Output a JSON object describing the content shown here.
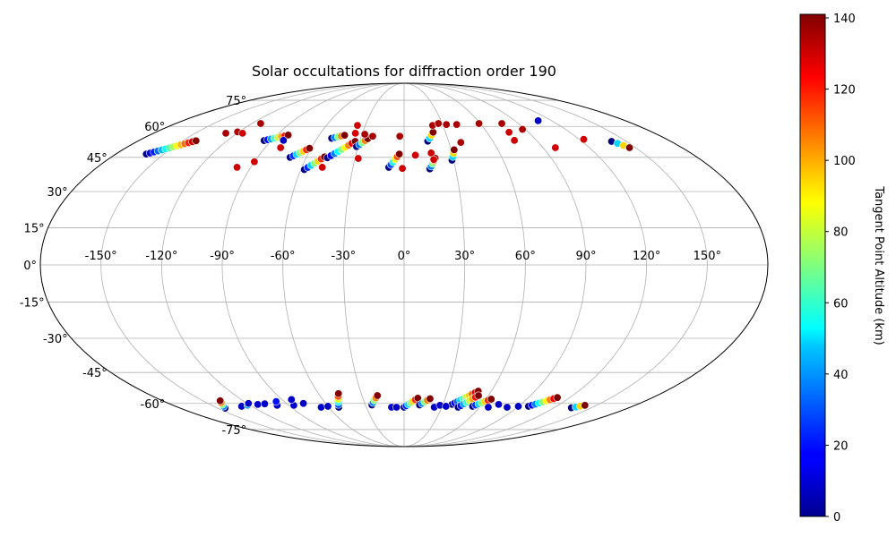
{
  "chart_data": {
    "type": "scatter",
    "projection": "mollweide",
    "title": "Solar occultations for diffraction order 190",
    "lon_ticks": [
      {
        "value": -150,
        "label": "-150°"
      },
      {
        "value": -120,
        "label": "-120°"
      },
      {
        "value": -90,
        "label": "-90°"
      },
      {
        "value": -60,
        "label": "-60°"
      },
      {
        "value": -30,
        "label": "-30°"
      },
      {
        "value": 0,
        "label": "0°"
      },
      {
        "value": 30,
        "label": "30°"
      },
      {
        "value": 60,
        "label": "60°"
      },
      {
        "value": 90,
        "label": "90°"
      },
      {
        "value": 120,
        "label": "120°"
      },
      {
        "value": 150,
        "label": "150°"
      }
    ],
    "lat_ticks": [
      {
        "value": 75,
        "label": "75°"
      },
      {
        "value": 60,
        "label": "60°"
      },
      {
        "value": 45,
        "label": "45°"
      },
      {
        "value": 30,
        "label": "30°"
      },
      {
        "value": 15,
        "label": "15°"
      },
      {
        "value": 0,
        "label": "0°"
      },
      {
        "value": -15,
        "label": "-15°"
      },
      {
        "value": -30,
        "label": "-30°"
      },
      {
        "value": -45,
        "label": "-45°"
      },
      {
        "value": -60,
        "label": "-60°"
      },
      {
        "value": -75,
        "label": "-75°"
      }
    ],
    "colorbar": {
      "label": "Tangent Point Altitude (km)",
      "colormap": "jet",
      "range": [
        0,
        141
      ],
      "ticks": [
        {
          "value": 0,
          "label": "0"
        },
        {
          "value": 20,
          "label": "20"
        },
        {
          "value": 40,
          "label": "40"
        },
        {
          "value": 60,
          "label": "60"
        },
        {
          "value": 80,
          "label": "80"
        },
        {
          "value": 100,
          "label": "100"
        },
        {
          "value": 120,
          "label": "120"
        },
        {
          "value": 140,
          "label": "140"
        }
      ]
    },
    "tracks": [
      {
        "lon0": -161,
        "lat0": 46.5,
        "lon1": -141,
        "lat1": 52.8,
        "n": 14
      },
      {
        "lon0": -95,
        "lat0": 52.9,
        "lon1": -82,
        "lat1": 55.6,
        "n": 8
      },
      {
        "lon0": -70,
        "lat0": 45.0,
        "lon1": -61,
        "lat1": 49.2,
        "n": 7
      },
      {
        "lon0": -58,
        "lat0": 39.5,
        "lon1": -49,
        "lat1": 45.2,
        "n": 7
      },
      {
        "lon0": -47,
        "lat0": 44.8,
        "lon1": -33,
        "lat1": 52.5,
        "n": 9
      },
      {
        "lon0": -50,
        "lat0": 54.0,
        "lon1": -42,
        "lat1": 55.5,
        "n": 5
      },
      {
        "lon0": -31,
        "lat0": 50.0,
        "lon1": -25,
        "lat1": 53.8,
        "n": 5
      },
      {
        "lon0": -9,
        "lat0": 40.5,
        "lon1": -3,
        "lat1": 46.5,
        "n": 6
      },
      {
        "lon0": 15,
        "lat0": 39.8,
        "lon1": 19,
        "lat1": 44.6,
        "n": 5
      },
      {
        "lon0": 29,
        "lat0": 43.7,
        "lon1": 32,
        "lat1": 48.5,
        "n": 4
      },
      {
        "lon0": 16,
        "lat0": 52.6,
        "lon1": 21,
        "lat1": 57.0,
        "n": 4
      },
      {
        "lon0": -144,
        "lat0": -62.5,
        "lon1": -137,
        "lat1": -58.6,
        "n": 5
      },
      {
        "lon0": -52,
        "lat0": -62.0,
        "lon1": -46,
        "lat1": -55.0,
        "n": 6
      },
      {
        "lon0": -25,
        "lat0": -60.8,
        "lon1": -19,
        "lat1": -56.0,
        "n": 5
      },
      {
        "lon0": 0,
        "lat0": -62.0,
        "lon1": 10,
        "lat1": -57.3,
        "n": 7
      },
      {
        "lon0": 12,
        "lat0": -60.8,
        "lon1": 19,
        "lat1": -57.6,
        "n": 5
      },
      {
        "lon0": 37,
        "lat0": -60.5,
        "lon1": 51,
        "lat1": -53.8,
        "n": 10
      },
      {
        "lon0": 43,
        "lat0": -62.0,
        "lon1": 53,
        "lat1": -56.0,
        "n": 8
      },
      {
        "lon0": 54,
        "lat0": -61.5,
        "lon1": 64,
        "lat1": -57.8,
        "n": 7
      },
      {
        "lon0": 98,
        "lat0": -61.5,
        "lon1": 111,
        "lat1": -57.0,
        "n": 9
      },
      {
        "lon0": 134,
        "lat0": -62.3,
        "lon1": 141,
        "lat1": -61.0,
        "n": 4
      },
      {
        "lon0": 140,
        "lat0": 52.5,
        "lon1": 146,
        "lat1": 49.5,
        "n": 4
      }
    ],
    "points": [
      {
        "lon": -128,
        "lat": 56.5,
        "alt": 135
      },
      {
        "lon": -121,
        "lat": 57.2,
        "alt": 135
      },
      {
        "lon": -113,
        "lat": 61.5,
        "alt": 135
      },
      {
        "lon": -116,
        "lat": 56.5,
        "alt": 130
      },
      {
        "lon": -98,
        "lat": 40.5,
        "alt": 130
      },
      {
        "lon": -82,
        "lat": 53.0,
        "alt": 10
      },
      {
        "lon": -90,
        "lat": 43.0,
        "alt": 130
      },
      {
        "lon": -80,
        "lat": 49.5,
        "alt": 130
      },
      {
        "lon": -36,
        "lat": 60.5,
        "alt": 130
      },
      {
        "lon": -35,
        "lat": 56.5,
        "alt": 128
      },
      {
        "lon": -28,
        "lat": 56.0,
        "alt": 135
      },
      {
        "lon": -22,
        "lat": 55.0,
        "alt": 135
      },
      {
        "lon": -28,
        "lat": 44.5,
        "alt": 130
      },
      {
        "lon": -3,
        "lat": 55.0,
        "alt": 135
      },
      {
        "lon": -1,
        "lat": 40.0,
        "alt": 130
      },
      {
        "lon": -48,
        "lat": 40.5,
        "alt": 130
      },
      {
        "lon": 7,
        "lat": 46.0,
        "alt": 130
      },
      {
        "lon": 17,
        "lat": 47.0,
        "alt": 130
      },
      {
        "lon": 18,
        "lat": 44.0,
        "alt": 130
      },
      {
        "lon": 22,
        "lat": 60.5,
        "alt": 135
      },
      {
        "lon": 27,
        "lat": 61.5,
        "alt": 135
      },
      {
        "lon": 33,
        "lat": 61.0,
        "alt": 135
      },
      {
        "lon": 41,
        "lat": 61.0,
        "alt": 135
      },
      {
        "lon": 38,
        "lat": 52.0,
        "alt": 135
      },
      {
        "lon": 59,
        "lat": 61.5,
        "alt": 135
      },
      {
        "lon": 77,
        "lat": 61.5,
        "alt": 135
      },
      {
        "lon": 76,
        "lat": 57.0,
        "alt": 130
      },
      {
        "lon": 75,
        "lat": 53.0,
        "alt": 130
      },
      {
        "lon": 88,
        "lat": 58.5,
        "alt": 135
      },
      {
        "lon": 109,
        "lat": 63.0,
        "alt": 10
      },
      {
        "lon": 98,
        "lat": 49.5,
        "alt": 130
      },
      {
        "lon": 123,
        "lat": 53.5,
        "alt": 130
      },
      {
        "lon": -128,
        "lat": -61.5,
        "alt": 10
      },
      {
        "lon": -122,
        "lat": -61.0,
        "alt": 40
      },
      {
        "lon": -119,
        "lat": -60.0,
        "alt": 10
      },
      {
        "lon": -113,
        "lat": -60.5,
        "alt": 10
      },
      {
        "lon": -107,
        "lat": -60.2,
        "alt": 10
      },
      {
        "lon": -99,
        "lat": -61.0,
        "alt": 10
      },
      {
        "lon": -96,
        "lat": -59.0,
        "alt": 20
      },
      {
        "lon": -86,
        "lat": -61.0,
        "alt": 10
      },
      {
        "lon": -83,
        "lat": -58.0,
        "alt": 10
      },
      {
        "lon": -77,
        "lat": -60.0,
        "alt": 10
      },
      {
        "lon": -66,
        "lat": -62.0,
        "alt": 10
      },
      {
        "lon": -60,
        "lat": -61.5,
        "alt": 10
      },
      {
        "lon": -10,
        "lat": -62.0,
        "alt": 10
      },
      {
        "lon": -6,
        "lat": -62.0,
        "alt": 10
      },
      {
        "lon": 24,
        "lat": -62.0,
        "alt": 10
      },
      {
        "lon": 28,
        "lat": -61.0,
        "alt": 10
      },
      {
        "lon": 33,
        "lat": -61.5,
        "alt": 10
      },
      {
        "lon": 67,
        "lat": -62.0,
        "alt": 10
      },
      {
        "lon": 82,
        "lat": -62.0,
        "alt": 10
      },
      {
        "lon": 90,
        "lat": -61.5,
        "alt": 10
      },
      {
        "lon": 73,
        "lat": -60.5,
        "alt": 10
      }
    ]
  }
}
